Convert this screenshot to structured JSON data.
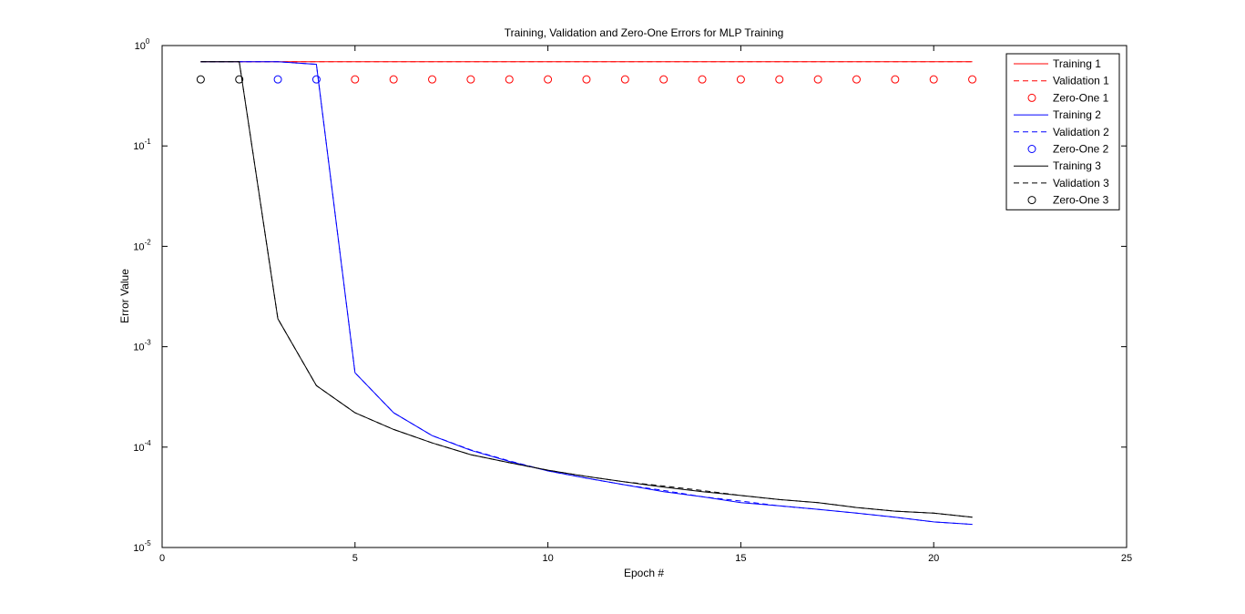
{
  "chart_data": {
    "type": "line",
    "title": "Training, Validation and Zero-One Errors for MLP Training",
    "xlabel": "Epoch #",
    "ylabel": "Error Value",
    "xlim": [
      0,
      25
    ],
    "ylim": [
      1e-05,
      1
    ],
    "yscale": "log",
    "grid": false,
    "legend_position": "top-right",
    "x_ticks": [
      {
        "value": 0,
        "label": "0"
      },
      {
        "value": 5,
        "label": "5"
      },
      {
        "value": 10,
        "label": "10"
      },
      {
        "value": 15,
        "label": "15"
      },
      {
        "value": 20,
        "label": "20"
      },
      {
        "value": 25,
        "label": "25"
      }
    ],
    "y_ticks": [
      {
        "value": 1,
        "base": "10",
        "exp": "0"
      },
      {
        "value": 0.1,
        "base": "10",
        "exp": "-1"
      },
      {
        "value": 0.01,
        "base": "10",
        "exp": "-2"
      },
      {
        "value": 0.001,
        "base": "10",
        "exp": "-3"
      },
      {
        "value": 0.0001,
        "base": "10",
        "exp": "-4"
      },
      {
        "value": 1e-05,
        "base": "10",
        "exp": "-5"
      }
    ],
    "x": [
      1,
      2,
      3,
      4,
      5,
      6,
      7,
      8,
      9,
      10,
      11,
      12,
      13,
      14,
      15,
      16,
      17,
      18,
      19,
      20,
      21
    ],
    "series": [
      {
        "name": "Training 1",
        "color": "#ff0000",
        "style": "solid",
        "values": [
          0.69,
          0.69,
          0.69,
          0.69,
          0.69,
          0.69,
          0.69,
          0.69,
          0.69,
          0.69,
          0.69,
          0.69,
          0.69,
          0.69,
          0.69,
          0.69,
          0.69,
          0.69,
          0.69,
          0.69,
          0.69
        ]
      },
      {
        "name": "Validation 1",
        "color": "#ff0000",
        "style": "dashed",
        "values": [
          0.69,
          0.69,
          0.69,
          0.69,
          0.69,
          0.69,
          0.69,
          0.69,
          0.69,
          0.69,
          0.69,
          0.69,
          0.69,
          0.69,
          0.69,
          0.69,
          0.69,
          0.69,
          0.69,
          0.69,
          0.69
        ]
      },
      {
        "name": "Zero-One 1",
        "color": "#ff0000",
        "style": "marker",
        "x": [
          5,
          6,
          7,
          8,
          9,
          10,
          11,
          12,
          13,
          14,
          15,
          16,
          17,
          18,
          19,
          20,
          21
        ],
        "values": [
          0.46,
          0.46,
          0.46,
          0.46,
          0.46,
          0.46,
          0.46,
          0.46,
          0.46,
          0.46,
          0.46,
          0.46,
          0.46,
          0.46,
          0.46,
          0.46,
          0.46
        ]
      },
      {
        "name": "Training 2",
        "color": "#0000ff",
        "style": "solid",
        "values": [
          0.69,
          0.69,
          0.69,
          0.65,
          0.00055,
          0.00022,
          0.00013,
          9.3e-05,
          7.2e-05,
          5.8e-05,
          4.9e-05,
          4.2e-05,
          3.6e-05,
          3.2e-05,
          2.8e-05,
          2.6e-05,
          2.4e-05,
          2.2e-05,
          2e-05,
          1.8e-05,
          1.7e-05
        ]
      },
      {
        "name": "Validation 2",
        "color": "#0000ff",
        "style": "dashed",
        "values": [
          0.69,
          0.69,
          0.69,
          0.65,
          0.00055,
          0.00022,
          0.00013,
          9.4e-05,
          7.3e-05,
          5.8e-05,
          4.9e-05,
          4.2e-05,
          3.7e-05,
          3.2e-05,
          2.9e-05,
          2.6e-05,
          2.4e-05,
          2.2e-05,
          2e-05,
          1.8e-05,
          1.7e-05
        ]
      },
      {
        "name": "Zero-One 2",
        "color": "#0000ff",
        "style": "marker",
        "x": [
          3,
          4
        ],
        "values": [
          0.46,
          0.46
        ]
      },
      {
        "name": "Training 3",
        "color": "#000000",
        "style": "solid",
        "values": [
          0.69,
          0.69,
          0.0019,
          0.00041,
          0.00022,
          0.00015,
          0.00011,
          8.4e-05,
          7e-05,
          5.9e-05,
          5.1e-05,
          4.5e-05,
          4e-05,
          3.6e-05,
          3.3e-05,
          3e-05,
          2.8e-05,
          2.5e-05,
          2.3e-05,
          2.2e-05,
          2e-05
        ]
      },
      {
        "name": "Validation 3",
        "color": "#000000",
        "style": "dashed",
        "values": [
          0.69,
          0.69,
          0.0019,
          0.00041,
          0.00022,
          0.00015,
          0.00011,
          8.4e-05,
          7e-05,
          5.9e-05,
          5.1e-05,
          4.5e-05,
          4.1e-05,
          3.7e-05,
          3.3e-05,
          3e-05,
          2.8e-05,
          2.5e-05,
          2.3e-05,
          2.2e-05,
          2e-05
        ]
      },
      {
        "name": "Zero-One 3",
        "color": "#000000",
        "style": "marker",
        "x": [
          1,
          2
        ],
        "values": [
          0.46,
          0.46
        ]
      }
    ]
  }
}
